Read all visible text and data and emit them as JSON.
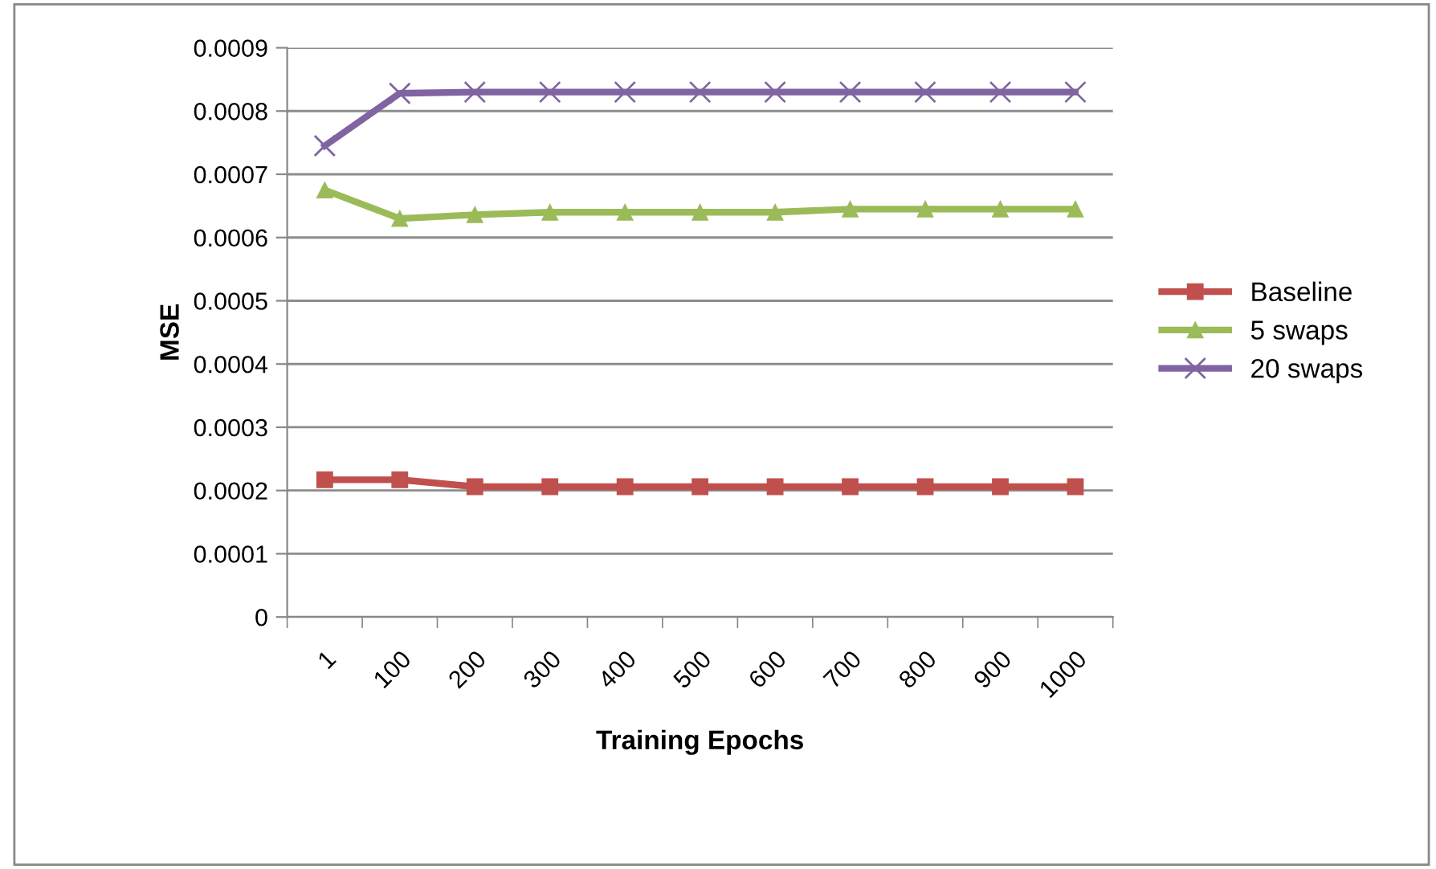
{
  "chart_data": {
    "type": "line",
    "xlabel": "Training Epochs",
    "ylabel": "MSE",
    "categories": [
      "1",
      "100",
      "200",
      "300",
      "400",
      "500",
      "600",
      "700",
      "800",
      "900",
      "1000"
    ],
    "series": [
      {
        "name": "Baseline",
        "color": "#c0504d",
        "marker": "square",
        "values": [
          0.000217,
          0.000217,
          0.000206,
          0.000206,
          0.000206,
          0.000206,
          0.000206,
          0.000206,
          0.000206,
          0.000206,
          0.000206
        ]
      },
      {
        "name": "5 swaps",
        "color": "#9bbb59",
        "marker": "triangle",
        "values": [
          0.000675,
          0.00063,
          0.000636,
          0.00064,
          0.00064,
          0.00064,
          0.00064,
          0.000645,
          0.000645,
          0.000645,
          0.000645
        ]
      },
      {
        "name": "20 swaps",
        "color": "#8064a2",
        "marker": "cross",
        "values": [
          0.000745,
          0.000828,
          0.00083,
          0.00083,
          0.00083,
          0.00083,
          0.00083,
          0.00083,
          0.00083,
          0.00083,
          0.00083
        ]
      }
    ],
    "ylim": [
      0,
      0.0009
    ],
    "yticks": [
      0,
      0.0001,
      0.0002,
      0.0003,
      0.0004,
      0.0005,
      0.0006,
      0.0007,
      0.0008,
      0.0009
    ],
    "grid": "y",
    "legend": "right",
    "line_style": "solid"
  }
}
